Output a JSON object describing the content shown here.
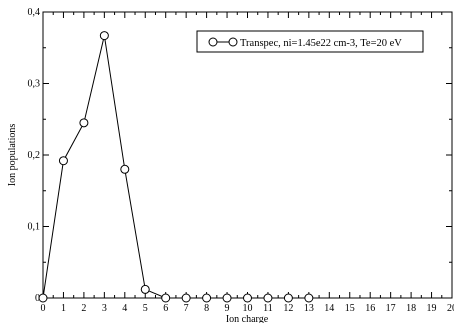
{
  "chart_data": {
    "type": "line",
    "title": "",
    "xlabel": "Ion charge",
    "ylabel": "Ion populations",
    "xlim": [
      0,
      20
    ],
    "ylim": [
      0,
      0.4
    ],
    "x_ticks": [
      0,
      1,
      2,
      3,
      4,
      5,
      6,
      7,
      8,
      9,
      10,
      11,
      12,
      13,
      14,
      15,
      16,
      17,
      18,
      19,
      20
    ],
    "x_tick_labels": [
      "0",
      "1",
      "2",
      "3",
      "4",
      "5",
      "6",
      "7",
      "8",
      "9",
      "10",
      "11",
      "12",
      "13",
      "14",
      "15",
      "16",
      "17",
      "18",
      "19",
      "20"
    ],
    "y_ticks": [
      0,
      0.1,
      0.2,
      0.3,
      0.4
    ],
    "y_tick_labels": [
      "0",
      "0,1",
      "0,2",
      "0,3",
      "0,4"
    ],
    "grid": false,
    "legend_position": "top-right",
    "series": [
      {
        "name": "Transpec, ni=1.45e22 cm-3, Te=20 eV",
        "marker": "open-circle",
        "color": "#000000",
        "x": [
          0,
          1,
          2,
          3,
          4,
          5,
          6,
          7,
          8,
          9,
          10,
          11,
          12,
          13
        ],
        "y": [
          0.0,
          0.192,
          0.245,
          0.367,
          0.18,
          0.012,
          0.0,
          0.0,
          0.0,
          0.0,
          0.0,
          0.0,
          0.0,
          0.0
        ]
      }
    ]
  }
}
